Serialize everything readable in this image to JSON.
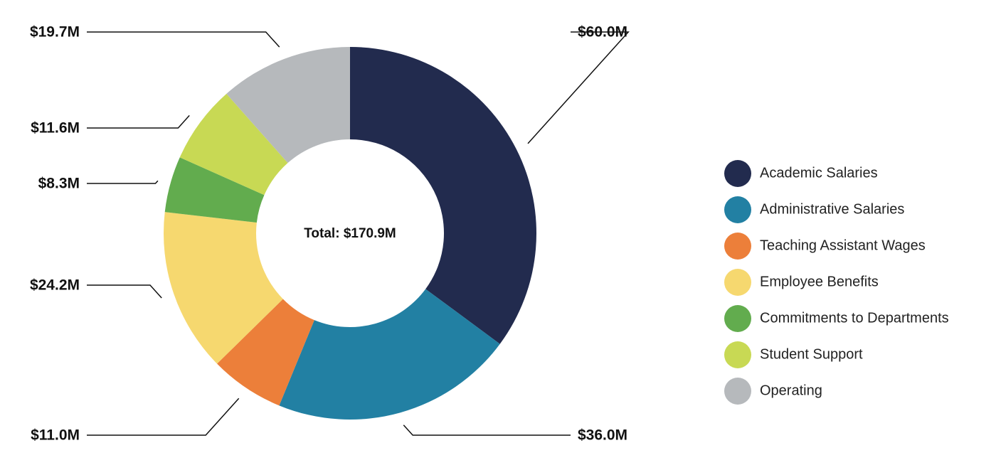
{
  "chart_data": {
    "type": "pie",
    "variant": "donut",
    "center_label": "Total: $170.9M",
    "legend_position": "right",
    "slices": [
      {
        "name": "Academic Salaries",
        "value": 60.0,
        "label": "$60.0M",
        "color": "#222b4e"
      },
      {
        "name": "Administrative Salaries",
        "value": 36.0,
        "label": "$36.0M",
        "color": "#2280a3"
      },
      {
        "name": "Teaching Assistant Wages",
        "value": 11.0,
        "label": "$11.0M",
        "color": "#ec7f3a"
      },
      {
        "name": "Employee Benefits",
        "value": 24.2,
        "label": "$24.2M",
        "color": "#f6d86f"
      },
      {
        "name": "Commitments to Departments",
        "value": 8.3,
        "label": "$8.3M",
        "color": "#62ac4e"
      },
      {
        "name": "Student Support",
        "value": 11.6,
        "label": "$11.6M",
        "color": "#c8d954"
      },
      {
        "name": "Operating",
        "value": 19.7,
        "label": "$19.7M",
        "color": "#b6b9bc"
      }
    ]
  }
}
